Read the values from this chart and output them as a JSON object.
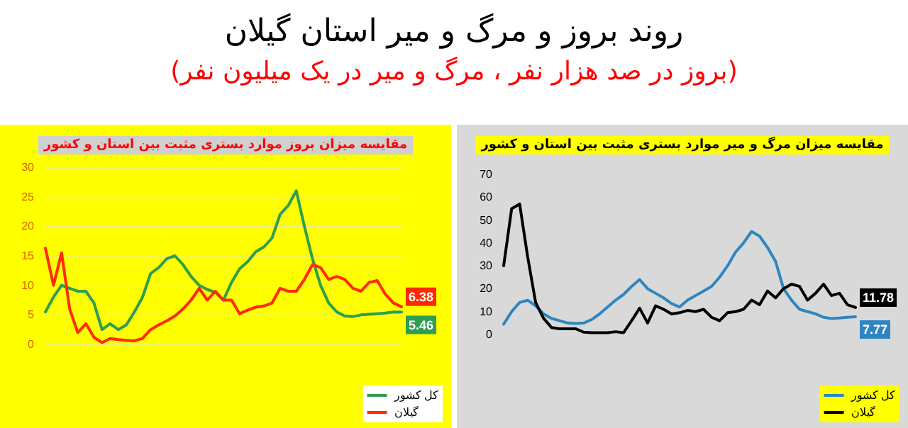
{
  "chart_data": [
    {
      "type": "other",
      "title": "روند بروز و مرگ و میر استان گیلان",
      "subtitle": "(بروز در صد هزار نفر ، مرگ و میر در یک میلیون نفر)"
    },
    {
      "type": "line",
      "title": "مقایسه میزان بروز موارد بستری مثبت بین استان و کشور",
      "categories": [
        null,
        null,
        null,
        null,
        null,
        null,
        null,
        null,
        null,
        null,
        null,
        null,
        null,
        null,
        null,
        null,
        null,
        null,
        null,
        null,
        null,
        null,
        null,
        null,
        null,
        null,
        null,
        null,
        null,
        null,
        null,
        null,
        null,
        null,
        null,
        null,
        null,
        null,
        null,
        null,
        null,
        null,
        null,
        null,
        null
      ],
      "ylim": [
        0,
        30
      ],
      "yticks": [
        0,
        5,
        10,
        15,
        20,
        25,
        30
      ],
      "grid": "y",
      "legend": "bottom right",
      "marker": "none",
      "line_style": "solid",
      "series": [
        {
          "name": "کل کشور",
          "color": "#2f9e4f",
          "values": [
            5.5,
            8,
            10,
            9.5,
            9,
            9,
            7,
            2.5,
            3.5,
            2.5,
            3.3,
            5.5,
            8,
            12,
            13,
            14.5,
            15,
            13.5,
            11.5,
            10,
            9.3,
            8.8,
            7.5,
            10.5,
            12.8,
            14,
            15.7,
            16.5,
            18,
            22,
            23.5,
            26,
            20,
            14.5,
            10,
            7,
            5.5,
            4.8,
            4.7,
            5,
            5.1,
            5.2,
            5.3,
            5.5,
            5.46
          ],
          "value_labels": [
            null,
            null,
            null,
            null,
            null,
            null,
            null,
            null,
            null,
            null,
            null,
            null,
            null,
            null,
            null,
            null,
            null,
            null,
            null,
            null,
            null,
            null,
            null,
            null,
            null,
            null,
            null,
            null,
            null,
            null,
            null,
            null,
            null,
            null,
            null,
            null,
            null,
            null,
            null,
            null,
            null,
            null,
            null,
            null,
            "5.46"
          ]
        },
        {
          "name": "گیلان",
          "color": "#ff2a00",
          "values": [
            16.3,
            10,
            15.5,
            6,
            2,
            3.5,
            1.2,
            0.3,
            1,
            0.8,
            0.7,
            0.6,
            1,
            2.5,
            3.3,
            4,
            4.8,
            6,
            7.5,
            9.5,
            7.5,
            9,
            7.5,
            7.5,
            5.2,
            5.8,
            6.3,
            6.5,
            7,
            9.5,
            9,
            9,
            11,
            13.5,
            13,
            11,
            11.5,
            11,
            9.5,
            9,
            10.5,
            10.8,
            8.5,
            7,
            6.38
          ],
          "value_labels": [
            null,
            null,
            null,
            null,
            null,
            null,
            null,
            null,
            null,
            null,
            null,
            null,
            null,
            null,
            null,
            null,
            null,
            null,
            null,
            null,
            null,
            null,
            null,
            null,
            null,
            null,
            null,
            null,
            null,
            null,
            null,
            null,
            null,
            null,
            null,
            null,
            null,
            null,
            null,
            null,
            null,
            null,
            null,
            null,
            "6.38"
          ]
        }
      ]
    },
    {
      "type": "line",
      "title": "مقایسه میزان مرگ و میر موارد بستری مثبت بین استان و کشور",
      "categories": [
        null,
        null,
        null,
        null,
        null,
        null,
        null,
        null,
        null,
        null,
        null,
        null,
        null,
        null,
        null,
        null,
        null,
        null,
        null,
        null,
        null,
        null,
        null,
        null,
        null,
        null,
        null,
        null,
        null,
        null,
        null,
        null,
        null,
        null,
        null,
        null,
        null,
        null,
        null,
        null,
        null,
        null,
        null,
        null,
        null
      ],
      "ylim": [
        0,
        70
      ],
      "yticks": [
        0,
        10,
        20,
        30,
        40,
        50,
        60,
        70
      ],
      "legend": "bottom right",
      "marker": "none",
      "line_style": "solid",
      "series": [
        {
          "name": "کل کشور",
          "color": "#2e86c1",
          "values": [
            4.5,
            10,
            14,
            15,
            12.5,
            9,
            7,
            6,
            5,
            4.8,
            5,
            6.5,
            9,
            12,
            15,
            17.5,
            21,
            24,
            20,
            18,
            16,
            13.5,
            12,
            15,
            17,
            19,
            21,
            25,
            30,
            36,
            40,
            45,
            43,
            38,
            32,
            20,
            15,
            11,
            10,
            9,
            7.5,
            7,
            7.2,
            7.5,
            7.77
          ],
          "value_labels": [
            null,
            null,
            null,
            null,
            null,
            null,
            null,
            null,
            null,
            null,
            null,
            null,
            null,
            null,
            null,
            null,
            null,
            null,
            null,
            null,
            null,
            null,
            null,
            null,
            null,
            null,
            null,
            null,
            null,
            null,
            null,
            null,
            null,
            null,
            null,
            null,
            null,
            null,
            null,
            null,
            null,
            null,
            null,
            null,
            "7.77"
          ]
        },
        {
          "name": "گیلان",
          "color": "#000000",
          "values": [
            30,
            55,
            57,
            34,
            14,
            7,
            3,
            2.5,
            2.5,
            2.5,
            1,
            0.8,
            0.8,
            0.8,
            1.2,
            0.8,
            6,
            11.5,
            5,
            12.5,
            11,
            9,
            9.5,
            10.5,
            10,
            11,
            7.5,
            6,
            9.5,
            10,
            11,
            15,
            13,
            19,
            16,
            20,
            22,
            21,
            15,
            18,
            22,
            17,
            18,
            13,
            11.78
          ],
          "value_labels": [
            null,
            null,
            null,
            null,
            null,
            null,
            null,
            null,
            null,
            null,
            null,
            null,
            null,
            null,
            null,
            null,
            null,
            null,
            null,
            null,
            null,
            null,
            null,
            null,
            null,
            null,
            null,
            null,
            null,
            null,
            null,
            null,
            null,
            null,
            null,
            null,
            null,
            null,
            null,
            null,
            null,
            null,
            null,
            null,
            "11.78"
          ]
        }
      ]
    }
  ]
}
